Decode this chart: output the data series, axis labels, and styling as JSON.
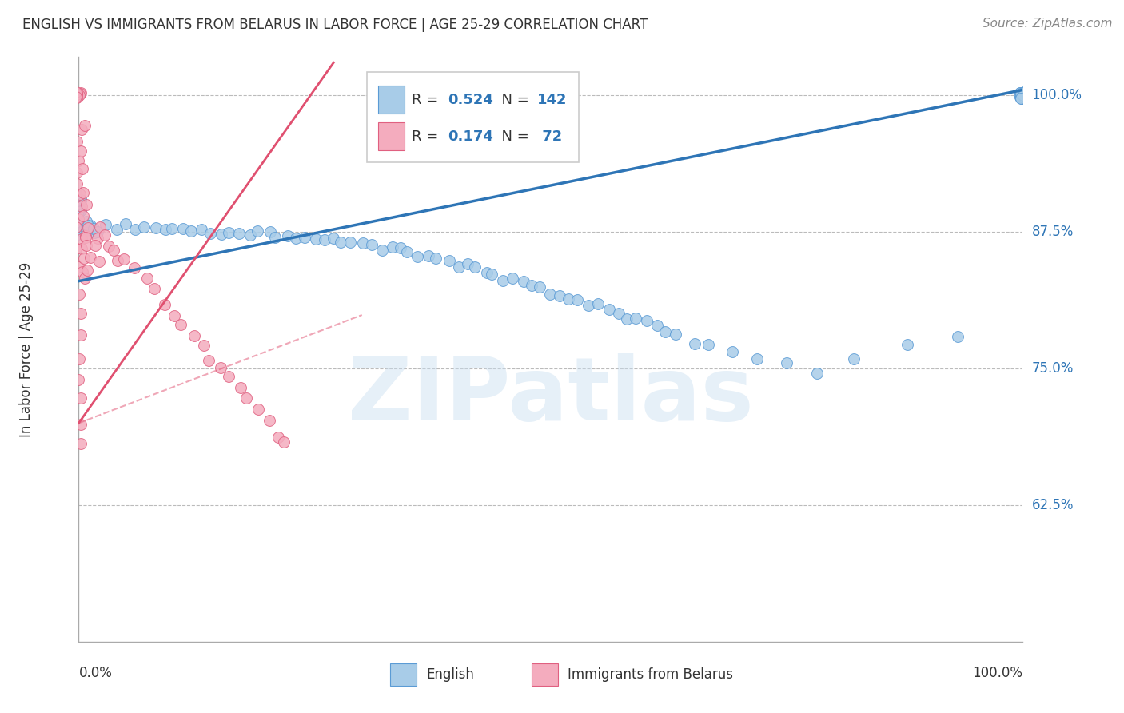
{
  "title": "ENGLISH VS IMMIGRANTS FROM BELARUS IN LABOR FORCE | AGE 25-29 CORRELATION CHART",
  "source": "Source: ZipAtlas.com",
  "ylabel": "In Labor Force | Age 25-29",
  "english_R": 0.524,
  "english_N": 142,
  "belarus_R": 0.174,
  "belarus_N": 72,
  "english_color": "#A8CCE8",
  "english_edge": "#5B9BD5",
  "belarus_color": "#F4ACBE",
  "belarus_edge": "#E06080",
  "trendline_english_color": "#2E75B6",
  "trendline_belarus_color": "#E05070",
  "watermark": "ZIPatlas",
  "bg_color": "#FFFFFF",
  "grid_color": "#BBBBBB",
  "xmin": 0.0,
  "xmax": 1.0,
  "ymin": 0.5,
  "ymax": 1.035,
  "ytick_positions": [
    0.625,
    0.75,
    0.875,
    1.0
  ],
  "ytick_labels": [
    "62.5%",
    "75.0%",
    "87.5%",
    "100.0%"
  ],
  "english_x": [
    0.0,
    0.0,
    0.0,
    0.0,
    0.0,
    0.0,
    0.0,
    0.0,
    0.0,
    0.0,
    0.0,
    0.0,
    0.0,
    0.0,
    0.0,
    0.0,
    0.0,
    0.0,
    0.0,
    0.0,
    0.005,
    0.005,
    0.01,
    0.01,
    0.01,
    0.01,
    0.01,
    0.015,
    0.015,
    0.02,
    0.03,
    0.04,
    0.05,
    0.06,
    0.07,
    0.08,
    0.09,
    0.1,
    0.11,
    0.12,
    0.13,
    0.14,
    0.15,
    0.16,
    0.17,
    0.18,
    0.19,
    0.2,
    0.21,
    0.22,
    0.23,
    0.24,
    0.25,
    0.26,
    0.27,
    0.28,
    0.29,
    0.3,
    0.31,
    0.32,
    0.33,
    0.34,
    0.35,
    0.36,
    0.37,
    0.38,
    0.39,
    0.4,
    0.41,
    0.42,
    0.43,
    0.44,
    0.45,
    0.46,
    0.47,
    0.48,
    0.49,
    0.5,
    0.51,
    0.52,
    0.53,
    0.54,
    0.55,
    0.56,
    0.57,
    0.58,
    0.59,
    0.6,
    0.61,
    0.62,
    0.63,
    0.65,
    0.67,
    0.69,
    0.72,
    0.75,
    0.78,
    0.82,
    0.88,
    0.93,
    1.0,
    1.0,
    1.0,
    1.0,
    1.0,
    1.0,
    1.0,
    1.0,
    1.0,
    1.0,
    1.0,
    1.0,
    1.0,
    1.0,
    1.0,
    1.0,
    1.0,
    1.0,
    1.0,
    1.0,
    1.0,
    1.0,
    1.0,
    1.0,
    1.0,
    1.0,
    1.0,
    1.0,
    1.0,
    1.0,
    1.0,
    1.0,
    1.0,
    1.0,
    1.0,
    1.0,
    1.0,
    1.0,
    1.0,
    1.0,
    1.0,
    1.0
  ],
  "english_y": [
    0.875,
    0.878,
    0.88,
    0.882,
    0.884,
    0.885,
    0.887,
    0.888,
    0.89,
    0.892,
    0.893,
    0.895,
    0.896,
    0.898,
    0.9,
    0.902,
    0.903,
    0.905,
    0.907,
    0.908,
    0.875,
    0.88,
    0.875,
    0.878,
    0.88,
    0.882,
    0.884,
    0.876,
    0.879,
    0.877,
    0.879,
    0.88,
    0.881,
    0.88,
    0.88,
    0.879,
    0.879,
    0.878,
    0.878,
    0.877,
    0.876,
    0.876,
    0.875,
    0.875,
    0.874,
    0.874,
    0.873,
    0.873,
    0.872,
    0.872,
    0.871,
    0.87,
    0.87,
    0.868,
    0.867,
    0.866,
    0.865,
    0.864,
    0.862,
    0.861,
    0.86,
    0.858,
    0.856,
    0.854,
    0.852,
    0.85,
    0.848,
    0.845,
    0.843,
    0.84,
    0.838,
    0.836,
    0.833,
    0.83,
    0.828,
    0.825,
    0.823,
    0.82,
    0.818,
    0.815,
    0.812,
    0.81,
    0.807,
    0.804,
    0.801,
    0.798,
    0.795,
    0.792,
    0.789,
    0.785,
    0.78,
    0.775,
    0.77,
    0.765,
    0.76,
    0.755,
    0.745,
    0.76,
    0.77,
    0.78,
    1.0,
    1.0,
    1.0,
    1.0,
    1.0,
    1.0,
    1.0,
    1.0,
    1.0,
    1.0,
    1.0,
    1.0,
    1.0,
    1.0,
    1.0,
    1.0,
    1.0,
    1.0,
    1.0,
    1.0,
    1.0,
    1.0,
    1.0,
    1.0,
    1.0,
    1.0,
    1.0,
    1.0,
    1.0,
    1.0,
    1.0,
    1.0,
    1.0,
    1.0,
    1.0,
    1.0,
    1.0,
    1.0,
    1.0,
    1.0,
    1.0,
    1.0
  ],
  "belarus_x": [
    0.0,
    0.0,
    0.0,
    0.0,
    0.0,
    0.0,
    0.0,
    0.0,
    0.0,
    0.0,
    0.0,
    0.0,
    0.0,
    0.0,
    0.0,
    0.0,
    0.0,
    0.0,
    0.0,
    0.0,
    0.0,
    0.0,
    0.0,
    0.0,
    0.0,
    0.0,
    0.0,
    0.0,
    0.0,
    0.0,
    0.005,
    0.005,
    0.005,
    0.005,
    0.005,
    0.005,
    0.005,
    0.005,
    0.005,
    0.005,
    0.01,
    0.01,
    0.01,
    0.01,
    0.01,
    0.01,
    0.02,
    0.02,
    0.02,
    0.02,
    0.03,
    0.03,
    0.04,
    0.04,
    0.05,
    0.06,
    0.07,
    0.08,
    0.09,
    0.1,
    0.11,
    0.12,
    0.13,
    0.14,
    0.15,
    0.16,
    0.17,
    0.18,
    0.19,
    0.2,
    0.21,
    0.22
  ],
  "belarus_y": [
    1.0,
    1.0,
    1.0,
    1.0,
    1.0,
    1.0,
    1.0,
    1.0,
    1.0,
    1.0,
    0.97,
    0.96,
    0.94,
    0.93,
    0.92,
    0.91,
    0.9,
    0.89,
    0.88,
    0.87,
    0.86,
    0.84,
    0.82,
    0.8,
    0.78,
    0.76,
    0.74,
    0.72,
    0.7,
    0.68,
    0.97,
    0.95,
    0.93,
    0.91,
    0.89,
    0.87,
    0.86,
    0.85,
    0.84,
    0.83,
    0.9,
    0.88,
    0.87,
    0.86,
    0.85,
    0.84,
    0.88,
    0.87,
    0.86,
    0.85,
    0.87,
    0.86,
    0.86,
    0.85,
    0.85,
    0.84,
    0.83,
    0.82,
    0.81,
    0.8,
    0.79,
    0.78,
    0.77,
    0.76,
    0.75,
    0.74,
    0.73,
    0.72,
    0.71,
    0.7,
    0.69,
    0.68
  ],
  "scatter_size": 100,
  "trendline_lw": 2.5,
  "font_title_size": 12,
  "font_label_size": 12,
  "font_tick_size": 12,
  "font_legend_size": 13,
  "legend_text_color": "#333333",
  "legend_value_color": "#2E75B6",
  "ytick_color": "#2E75B6",
  "xlabel_color": "#333333",
  "title_color": "#333333",
  "source_color": "#888888"
}
